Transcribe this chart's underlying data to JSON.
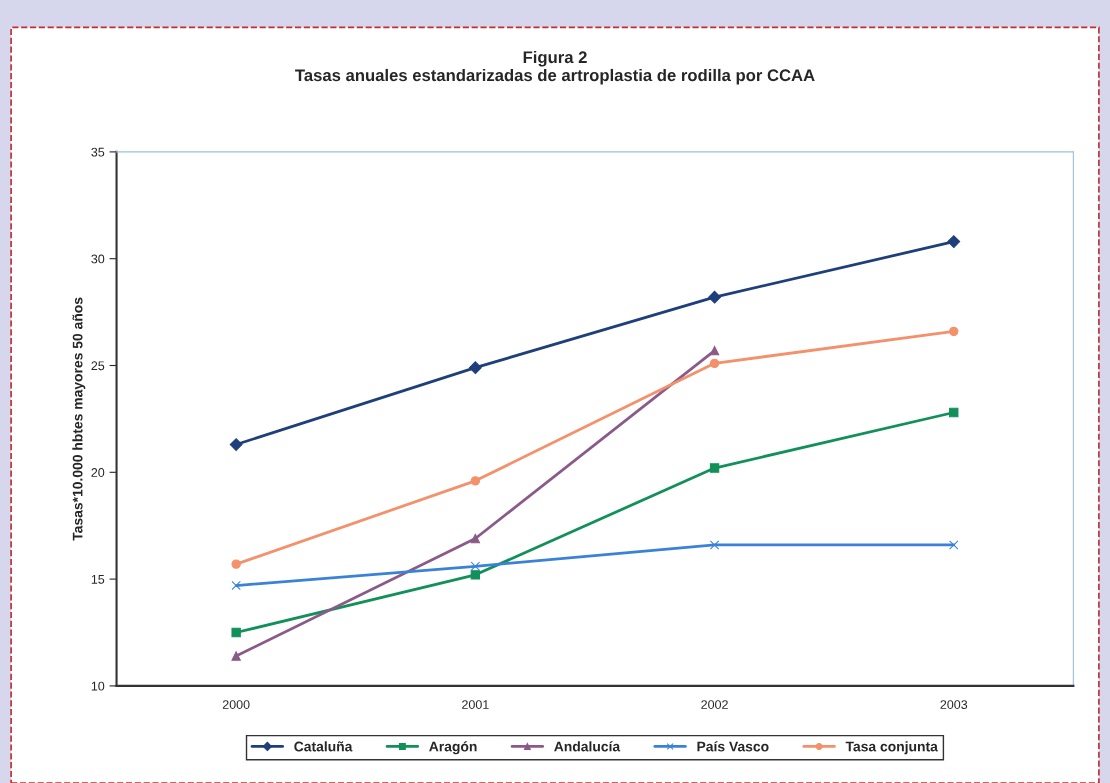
{
  "chart_data": {
    "type": "line",
    "title": "Figura 2\nTasas anuales estandarizadas de artroplastia de rodilla por CCAA",
    "ylabel": "Tasas*10.000 hbtes mayores 50 años",
    "categories": [
      "2000",
      "2001",
      "2002",
      "2003"
    ],
    "series": [
      {
        "name": "Cataluña",
        "color": "#1f3f7a",
        "marker": "diamond",
        "values": [
          21.3,
          24.9,
          28.2,
          30.8
        ]
      },
      {
        "name": "Aragón",
        "color": "#11905a",
        "marker": "square",
        "values": [
          12.5,
          15.2,
          20.2,
          22.8
        ]
      },
      {
        "name": "Andalucía",
        "color": "#8a5a88",
        "marker": "triangle",
        "values": [
          11.4,
          16.9,
          25.7,
          null
        ]
      },
      {
        "name": "País Vasco",
        "color": "#3a82d8",
        "marker": "cross",
        "values": [
          14.7,
          15.6,
          16.6,
          16.6
        ]
      },
      {
        "name": "Tasa conjunta",
        "color": "#f4906a",
        "marker": "circle",
        "values": [
          15.7,
          19.6,
          25.1,
          26.6
        ]
      }
    ],
    "ylim": [
      10,
      35
    ],
    "yticks": [
      10,
      15,
      20,
      25,
      30,
      35
    ],
    "grid": false,
    "legend": "bottom"
  }
}
